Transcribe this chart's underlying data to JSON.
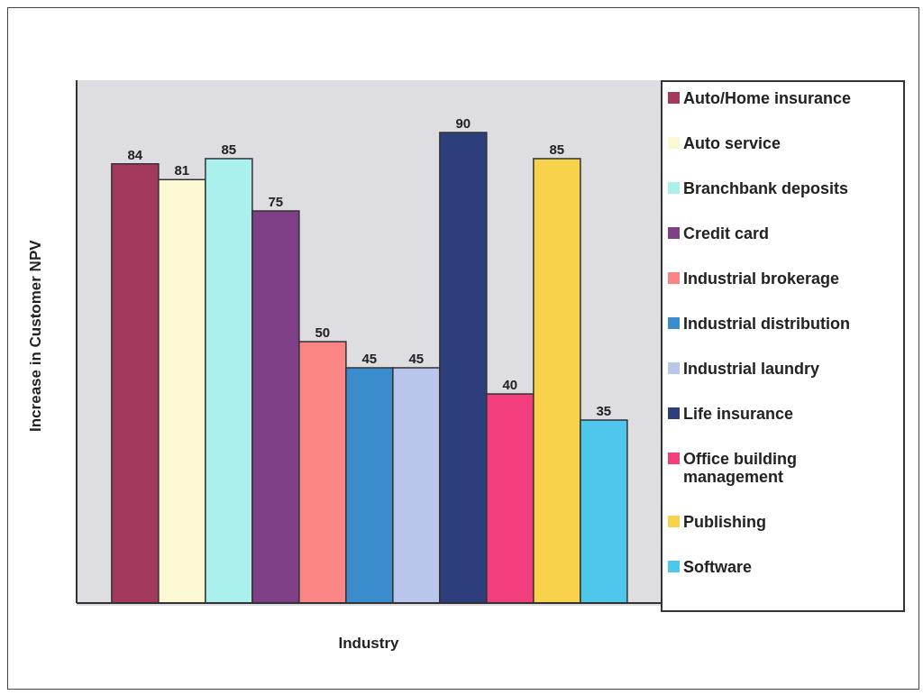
{
  "chart_data": {
    "type": "bar",
    "xlabel": "Industry",
    "ylabel": "Increase in Customer NPV",
    "categories": [
      null
    ],
    "series": [
      {
        "name": "Auto/Home insurance",
        "color": "#a33a5e",
        "values": [
          84
        ]
      },
      {
        "name": "Auto service",
        "color": "#fbf8d4",
        "values": [
          81
        ]
      },
      {
        "name": "Branchbank deposits",
        "color": "#aaf0ec",
        "values": [
          85
        ]
      },
      {
        "name": "Credit card",
        "color": "#7e3f86",
        "values": [
          75
        ]
      },
      {
        "name": "Industrial brokerage",
        "color": "#f98585",
        "values": [
          50
        ]
      },
      {
        "name": "Industrial distribution",
        "color": "#3b8ccd",
        "values": [
          45
        ]
      },
      {
        "name": "Industrial laundry",
        "color": "#b9c5ea",
        "values": [
          45
        ]
      },
      {
        "name": "Life insurance",
        "color": "#2c3e7c",
        "values": [
          90
        ]
      },
      {
        "name": "Office building management",
        "color": "#f23e7e",
        "values": [
          40
        ]
      },
      {
        "name": "Publishing",
        "color": "#f7d24a",
        "values": [
          85
        ]
      },
      {
        "name": "Software",
        "color": "#4fc6ec",
        "values": [
          35
        ]
      }
    ],
    "ylim": [
      0,
      100
    ],
    "tick_labels": false,
    "data_labels": true,
    "legend": "right",
    "grid": false
  }
}
